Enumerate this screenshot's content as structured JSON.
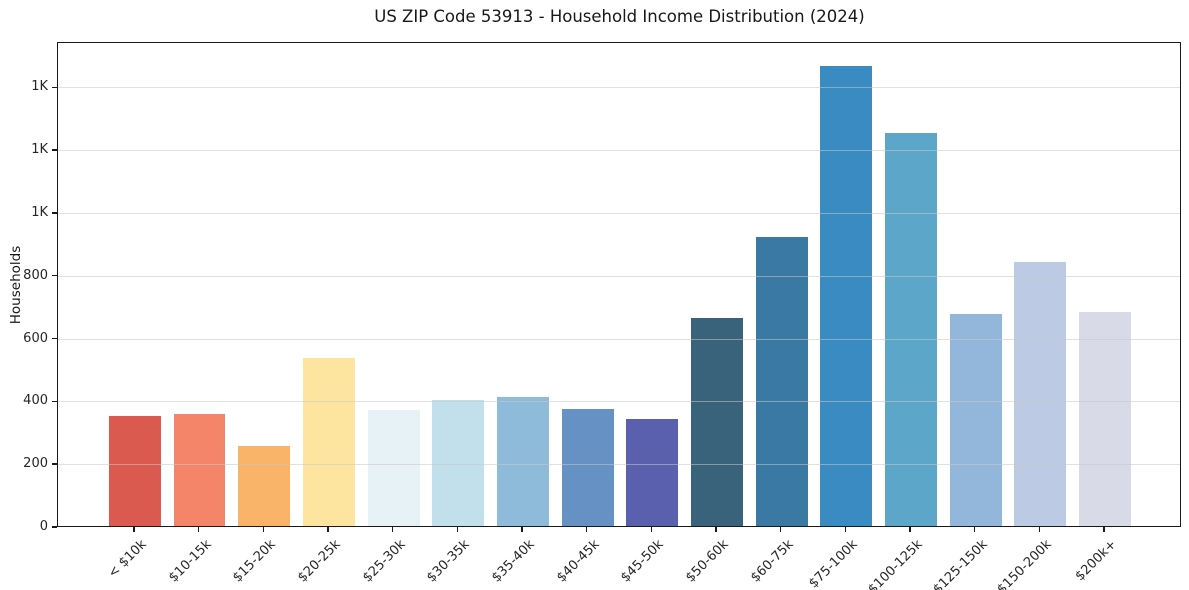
{
  "chart_data": {
    "type": "bar",
    "title": "US ZIP Code 53913 - Household Income Distribution (2024)",
    "xlabel": "",
    "ylabel": "Households",
    "categories": [
      "< $10k",
      "$10-15k",
      "$15-20k",
      "$20-25k",
      "$25-30k",
      "$30-35k",
      "$35-40k",
      "$40-45k",
      "$45-50k",
      "$50-60k",
      "$60-75k",
      "$75-100k",
      "$100-125k",
      "$125-150k",
      "$150-200k",
      "$200k+"
    ],
    "values": [
      350,
      356,
      256,
      536,
      368,
      402,
      411,
      371,
      341,
      662,
      919,
      1465,
      1250,
      676,
      842,
      681
    ],
    "bar_colors": [
      "#da5a50",
      "#f48569",
      "#f9b469",
      "#fde5a0",
      "#e6f2f6",
      "#c1e0ec",
      "#8ebbd9",
      "#6591c5",
      "#5a5fae",
      "#38637b",
      "#3a79a4",
      "#398bc2",
      "#5ca6ca",
      "#92b7da",
      "#bdcae3",
      "#d8dae8"
    ],
    "ylim": [
      0,
      1544
    ],
    "yticks": [
      {
        "value": 0,
        "label": "0"
      },
      {
        "value": 200,
        "label": "200"
      },
      {
        "value": 400,
        "label": "400"
      },
      {
        "value": 600,
        "label": "600"
      },
      {
        "value": 800,
        "label": "800"
      },
      {
        "value": 1000,
        "label": "1K"
      },
      {
        "value": 1200,
        "label": "1K"
      },
      {
        "value": 1400,
        "label": "1K"
      }
    ],
    "grid": "horizontal",
    "legend": "none",
    "frame": "full-box"
  }
}
